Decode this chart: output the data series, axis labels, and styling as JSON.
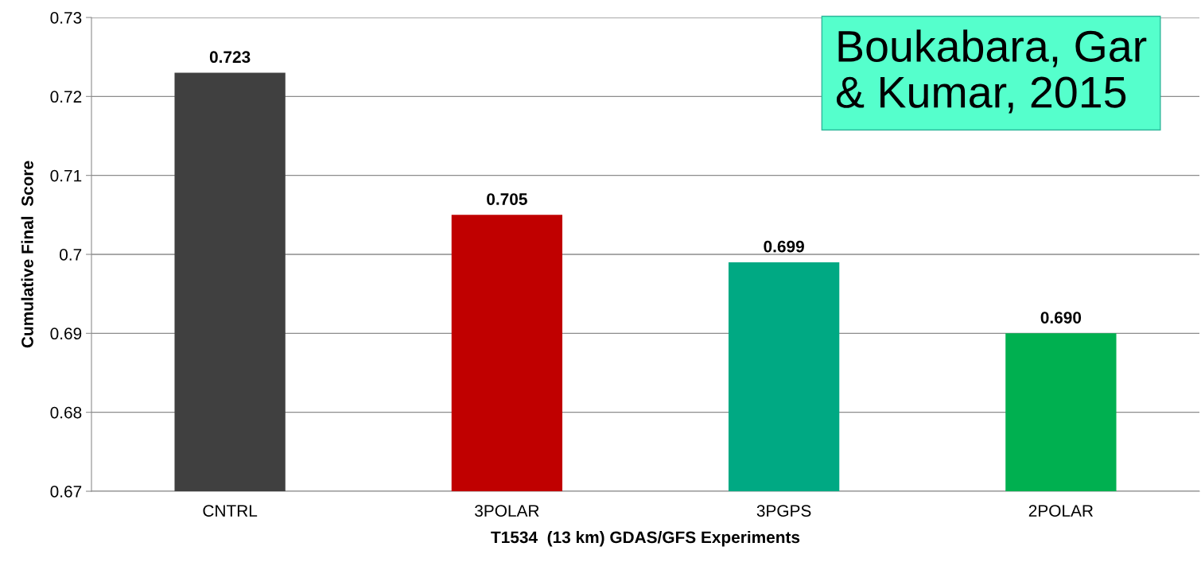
{
  "chart_data": {
    "type": "bar",
    "categories": [
      "CNTRL",
      "3POLAR",
      "3PGPS",
      "2POLAR"
    ],
    "values": [
      0.723,
      0.705,
      0.699,
      0.69
    ],
    "colors": [
      "#404040",
      "#c00000",
      "#00a983",
      "#00b050"
    ],
    "xlabel": "T1534  (13 km) GDAS/GFS Experiments",
    "ylabel": "Cumulative Final  Score",
    "ylim": [
      0.67,
      0.73
    ],
    "yticks": [
      0.67,
      0.68,
      0.69,
      0.7,
      0.71,
      0.72,
      0.73
    ],
    "grid": "y",
    "value_labels": [
      "0.723",
      "0.705",
      "0.699",
      "0.690"
    ],
    "annotations": [
      "Boukabara, Gar\n& Kumar, 2015"
    ]
  }
}
